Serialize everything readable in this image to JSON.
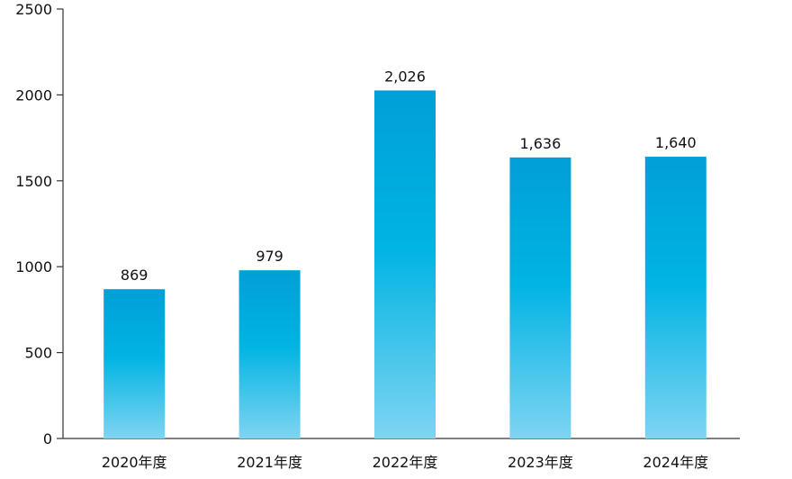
{
  "chart_data": {
    "type": "bar",
    "categories": [
      "2020年度",
      "2021年度",
      "2022年度",
      "2023年度",
      "2024年度"
    ],
    "values": [
      869,
      979,
      2026,
      1636,
      1640
    ],
    "data_labels": [
      "869",
      "979",
      "2,026",
      "1,636",
      "1,640"
    ],
    "title": "",
    "xlabel": "",
    "ylabel": "",
    "ylim": [
      0,
      2500
    ],
    "yticks": [
      0,
      500,
      1000,
      1500,
      2000,
      2500
    ],
    "ytick_labels": [
      "0",
      "500",
      "1000",
      "1500",
      "2000",
      "2500"
    ],
    "grid": false,
    "legend": "none",
    "colors": {
      "bar_top": "#009fd8",
      "bar_mid": "#00b4e3",
      "bar_bottom": "#7fd4f2",
      "axis": "#333333",
      "text": "#111111"
    }
  }
}
